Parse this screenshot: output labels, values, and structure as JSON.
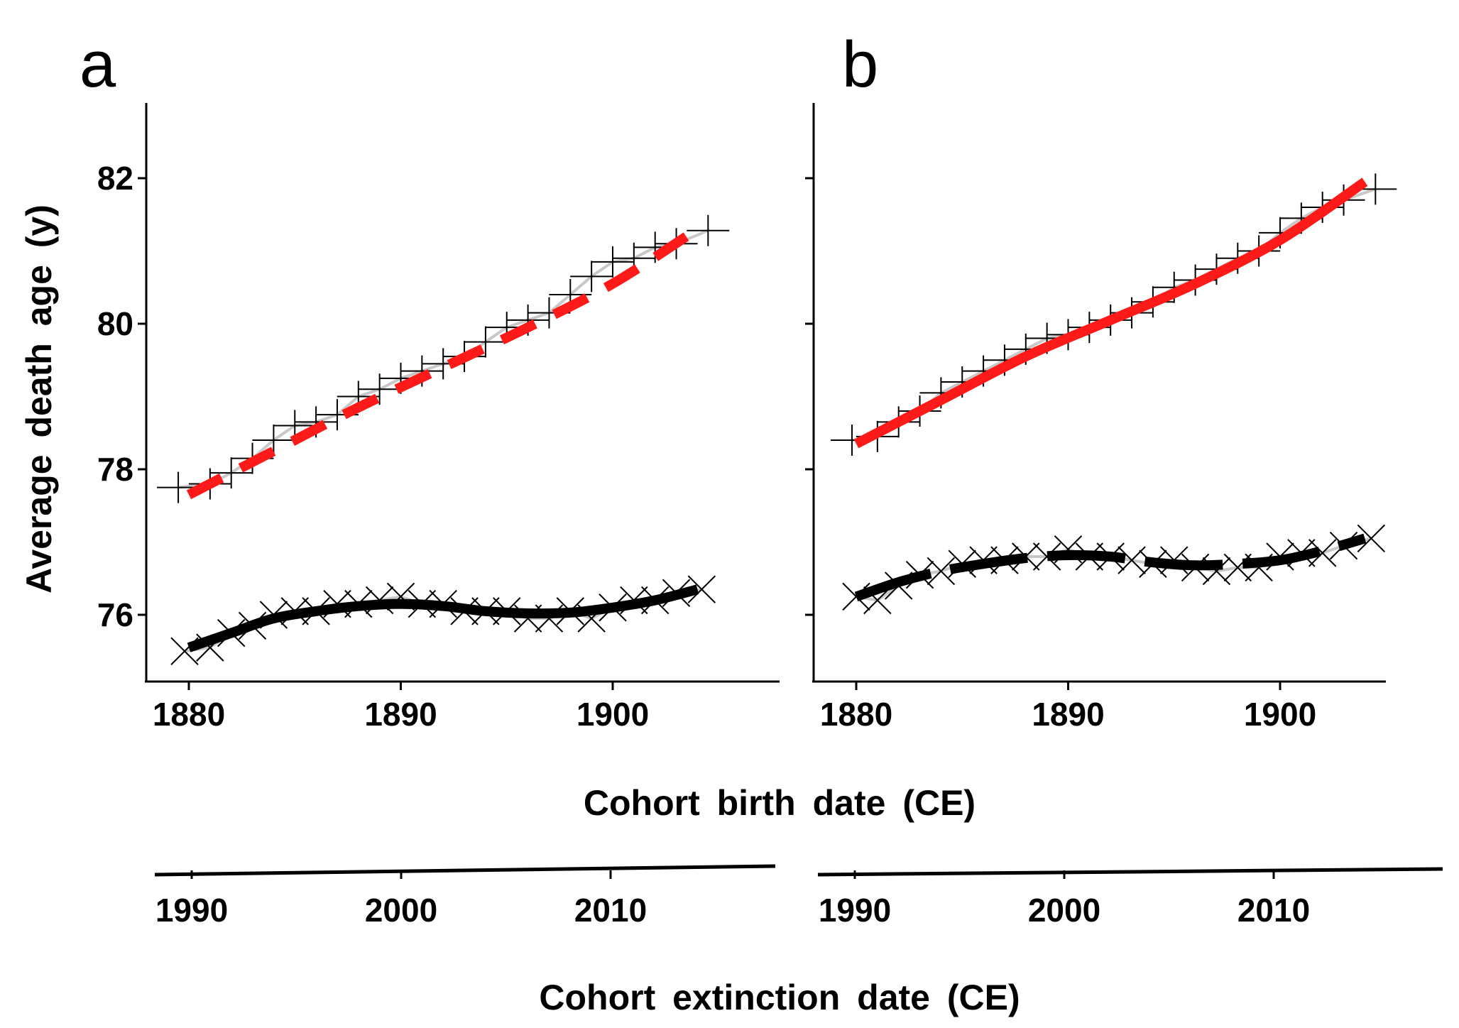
{
  "figure": {
    "ylabel": "Average death age (y)",
    "xlabel_birth": "Cohort birth date (CE)",
    "xlabel_extinction": "Cohort extinction date (CE)"
  },
  "chart_data": [
    {
      "type": "line",
      "panel_label": "a",
      "xlabel": "Cohort birth date (CE)",
      "ylabel": "Average death age (y)",
      "xlim": [
        1878,
        1908
      ],
      "ylim": [
        75,
        83
      ],
      "x_ticks": [
        1880,
        1890,
        1900
      ],
      "y_ticks": [
        76,
        78,
        80,
        82
      ],
      "secondary_x_axis": {
        "label": "Cohort extinction date (CE)",
        "ticks": [
          1990,
          2000,
          2010
        ]
      },
      "grid": false,
      "series": [
        {
          "style": "red-dashed-fit",
          "color": "#ff1a1a",
          "x": [
            1880,
            1884,
            1888,
            1892,
            1896,
            1900,
            1904
          ],
          "values": [
            77.65,
            78.25,
            78.85,
            79.4,
            79.95,
            80.55,
            81.3
          ]
        },
        {
          "style": "black-solid-fit",
          "color": "#000000",
          "x": [
            1880,
            1882,
            1884,
            1886,
            1888,
            1890,
            1892,
            1894,
            1896,
            1898,
            1900,
            1902,
            1904
          ],
          "values": [
            75.55,
            75.75,
            75.95,
            76.05,
            76.12,
            76.15,
            76.12,
            76.05,
            76.02,
            76.03,
            76.1,
            76.2,
            76.35
          ]
        },
        {
          "style": "plus-markers",
          "color": "#000000",
          "x": [
            1879.5,
            1881,
            1882,
            1883,
            1884,
            1885,
            1886,
            1887,
            1888,
            1889,
            1890,
            1891,
            1892,
            1893,
            1894,
            1895,
            1896,
            1897,
            1898,
            1899,
            1900,
            1901,
            1902,
            1903,
            1904.5
          ],
          "values": [
            77.75,
            77.8,
            77.95,
            78.15,
            78.4,
            78.6,
            78.65,
            78.75,
            79.0,
            79.1,
            79.25,
            79.35,
            79.45,
            79.55,
            79.75,
            79.95,
            80.05,
            80.15,
            80.4,
            80.65,
            80.85,
            80.9,
            81.05,
            81.1,
            81.28
          ]
        },
        {
          "style": "x-markers",
          "color": "#000000",
          "x": [
            1879.8,
            1881,
            1882,
            1883,
            1884,
            1885,
            1886,
            1887,
            1888,
            1889,
            1890,
            1891,
            1892,
            1893,
            1894,
            1895,
            1896,
            1897,
            1898,
            1899,
            1900,
            1901,
            1902,
            1903,
            1904.2
          ],
          "values": [
            75.5,
            75.55,
            75.75,
            75.85,
            76.0,
            76.05,
            76.05,
            76.15,
            76.15,
            76.2,
            76.25,
            76.15,
            76.15,
            76.05,
            76.05,
            76.05,
            75.95,
            75.95,
            76.05,
            75.95,
            76.1,
            76.2,
            76.2,
            76.3,
            76.35
          ]
        }
      ]
    },
    {
      "type": "line",
      "panel_label": "b",
      "xlabel": "Cohort birth date (CE)",
      "ylabel": "Average death age (y)",
      "xlim": [
        1878,
        1908
      ],
      "ylim": [
        75,
        83
      ],
      "x_ticks": [
        1880,
        1890,
        1900
      ],
      "y_ticks": [
        76,
        78,
        80,
        82
      ],
      "secondary_x_axis": {
        "label": "Cohort extinction date (CE)",
        "ticks": [
          1990,
          2000,
          2010
        ]
      },
      "grid": false,
      "series": [
        {
          "style": "red-solid-fit",
          "color": "#ff1a1a",
          "x": [
            1880,
            1884,
            1888,
            1892,
            1896,
            1900,
            1904
          ],
          "values": [
            78.35,
            78.95,
            79.55,
            80.05,
            80.55,
            81.15,
            81.95
          ]
        },
        {
          "style": "black-dashed-fit",
          "color": "#000000",
          "x": [
            1880,
            1882,
            1884,
            1886,
            1888,
            1890,
            1892,
            1894,
            1896,
            1898,
            1900,
            1902,
            1904
          ],
          "values": [
            76.25,
            76.45,
            76.6,
            76.7,
            76.78,
            76.82,
            76.8,
            76.72,
            76.68,
            76.7,
            76.75,
            76.88,
            77.05
          ]
        },
        {
          "style": "plus-markers",
          "color": "#000000",
          "x": [
            1879.8,
            1881,
            1882,
            1883,
            1884,
            1885,
            1886,
            1887,
            1888,
            1889,
            1890,
            1891,
            1892,
            1893,
            1894,
            1895,
            1896,
            1897,
            1898,
            1899,
            1900,
            1901,
            1902,
            1903,
            1904.5
          ],
          "values": [
            78.4,
            78.45,
            78.65,
            78.8,
            79.05,
            79.2,
            79.35,
            79.5,
            79.65,
            79.8,
            79.85,
            79.95,
            80.05,
            80.15,
            80.3,
            80.5,
            80.6,
            80.75,
            80.9,
            81.0,
            81.25,
            81.45,
            81.6,
            81.7,
            81.85
          ]
        },
        {
          "style": "x-markers",
          "color": "#000000",
          "x": [
            1880,
            1881,
            1882,
            1883,
            1884,
            1885,
            1886,
            1887,
            1888,
            1889,
            1890,
            1891,
            1892,
            1893,
            1894,
            1895,
            1896,
            1897,
            1898,
            1899,
            1900,
            1901,
            1902,
            1903,
            1904.3
          ],
          "values": [
            76.25,
            76.2,
            76.4,
            76.55,
            76.6,
            76.7,
            76.75,
            76.75,
            76.8,
            76.8,
            76.9,
            76.8,
            76.8,
            76.75,
            76.7,
            76.75,
            76.65,
            76.6,
            76.65,
            76.65,
            76.8,
            76.85,
            76.85,
            76.95,
            77.05
          ]
        }
      ]
    }
  ]
}
